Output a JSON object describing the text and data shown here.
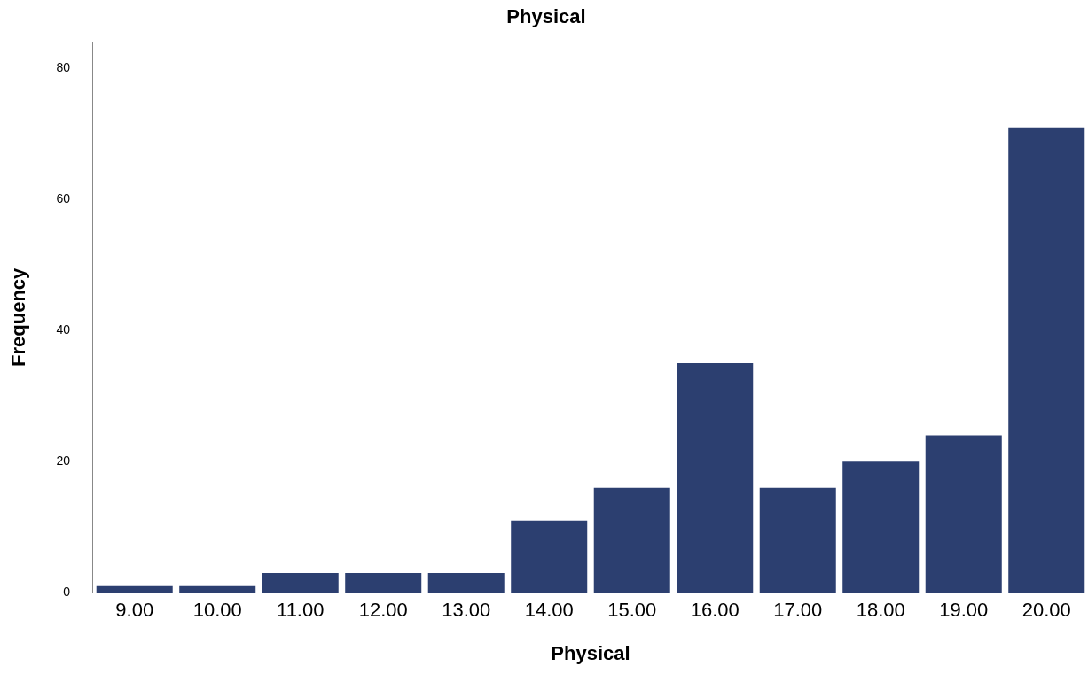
{
  "chart_data": {
    "type": "bar",
    "title": "Physical",
    "xlabel": "Physical",
    "ylabel": "Frequency",
    "categories": [
      "9.00",
      "10.00",
      "11.00",
      "12.00",
      "13.00",
      "14.00",
      "15.00",
      "16.00",
      "17.00",
      "18.00",
      "19.00",
      "20.00"
    ],
    "values": [
      1,
      1,
      3,
      3,
      3,
      11,
      16,
      35,
      16,
      20,
      24,
      71
    ],
    "color": "#2c3f70",
    "ylim": [
      0,
      84
    ],
    "yticks": [
      0,
      20,
      40,
      60,
      80
    ],
    "grid": false,
    "legend": false
  }
}
